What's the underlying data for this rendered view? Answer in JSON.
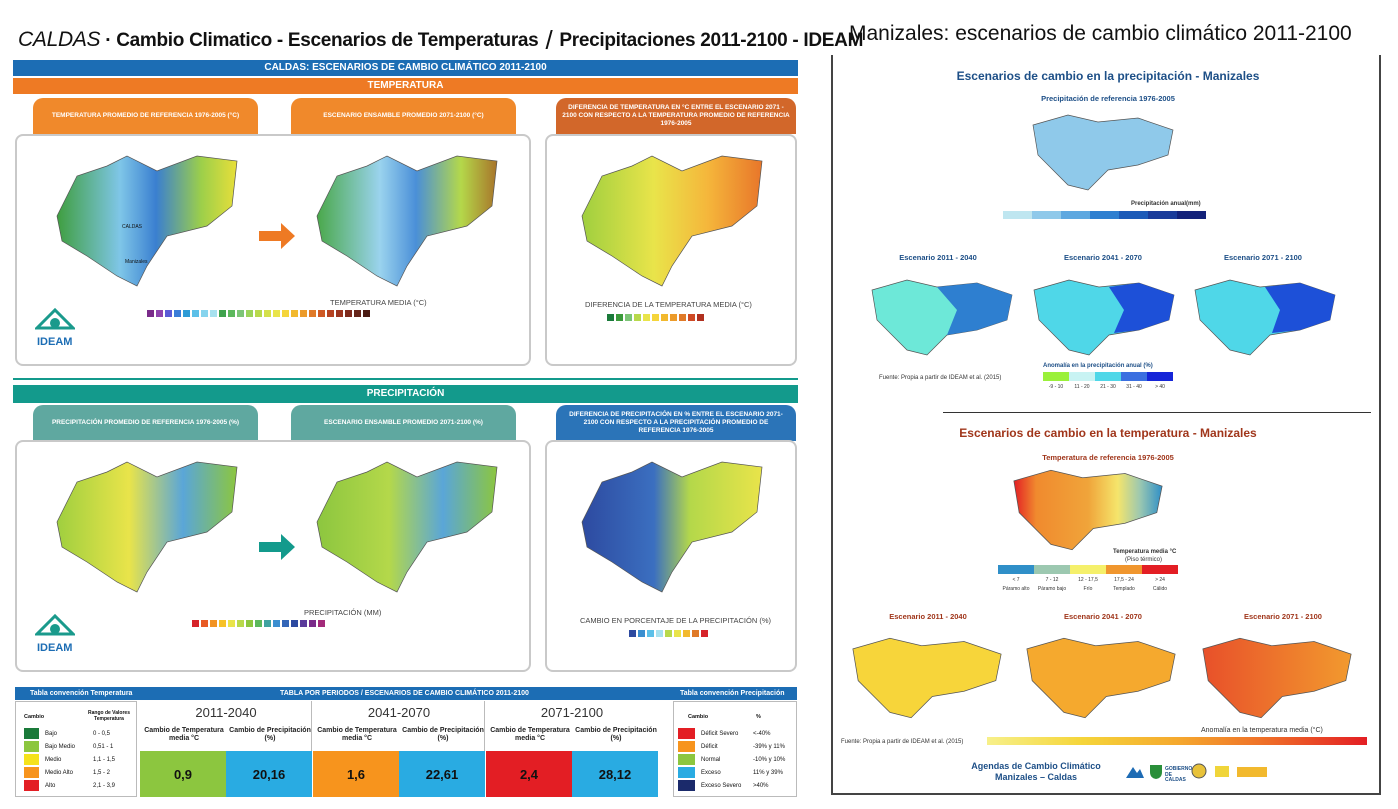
{
  "header": {
    "left_brand": "CALDAS",
    "left_rest_1": " · Cambio Climatico - Escenarios de Temperaturas",
    "left_sep": "/",
    "left_rest_2": "Precipitaciones 2011-2100 - IDEAM",
    "right_title": "Manizales: escenarios de cambio climático 2011-2100"
  },
  "poster": {
    "top_banner": "CALDAS:  ESCENARIOS DE CAMBIO CLIMÁTICO 2011-2100",
    "temp_banner": "TEMPERATURA",
    "temp_tab_1": "TEMPERATURA PROMEDIO DE REFERENCIA 1976-2005 (°C)",
    "temp_tab_2": "ESCENARIO ENSAMBLE PROMEDIO 2071-2100  (°C)",
    "temp_tab_3": "DIFERENCIA  DE TEMPERATURA EN  °C ENTRE EL ESCENARIO 2071 - 2100 CON RESPECTO A LA TEMPERATURA PROMEDIO DE REFERENCIA 1976-2005",
    "temp_legend": "TEMPERATURA MEDIA (°C)",
    "temp_diff_legend": "DIFERENCIA DE LA  TEMPERATURA MEDIA (°C)",
    "precip_banner": "PRECIPITACIÓN",
    "precip_tab_1": "PRECIPITACIÓN PROMEDIO DE REFERENCIA 1976-2005 (%)",
    "precip_tab_2": "ESCENARIO ENSAMBLE PROMEDIO 2071-2100 (%)",
    "precip_tab_3": "DIFERENCIA DE PRECIPITACIÓN EN % ENTRE EL ESCENARIO 2071-2100 CON RESPECTO A LA PRECIPITACIÓN PROMEDIO DE REFERENCIA 1976-2005",
    "precip_legend": "PRECIPITACIÓN (mm)",
    "precip_diff_legend": "CAMBIO EN PORCENTAJE DE LA PRECIPITACIÓN (%)",
    "ideam": "IDEAM",
    "map_label_caldas": "CALDAS",
    "map_label_manizales": "Manizales"
  },
  "table": {
    "left_head": "Tabla convención Temperatura",
    "center_head": "TABLA POR PERIODOS  /  ESCENARIOS DE CAMBIO CLIMÁTICO 2011-2100",
    "right_head": "Tabla convención Precipitación",
    "temp_conv_col1": "Cambio",
    "temp_conv_col2": "Rango de Valores Temperatura",
    "temp_conv": [
      {
        "label": "Bajo",
        "range": "0 - 0,5",
        "color": "#1a7a3a"
      },
      {
        "label": "Bajo Medio",
        "range": "0,51 - 1",
        "color": "#8cc63f"
      },
      {
        "label": "Medio",
        "range": "1,1 - 1,5",
        "color": "#f5e21b"
      },
      {
        "label": "Medio Alto",
        "range": "1,5 - 2",
        "color": "#f7941d"
      },
      {
        "label": "Alto",
        "range": "2,1 - 3,9",
        "color": "#e31e24"
      }
    ],
    "periods": [
      {
        "name": "2011-2040",
        "temp_hdr": "Cambio de Temperatura media °C",
        "prec_hdr": "Cambio de Precipitación (%)",
        "temp": "0,9",
        "prec": "20,16",
        "temp_color": "#8cc63f",
        "prec_color": "#29abe2"
      },
      {
        "name": "2041-2070",
        "temp_hdr": "Cambio de Temperatura media °C",
        "prec_hdr": "Cambio de Precipitación (%)",
        "temp": "1,6",
        "prec": "22,61",
        "temp_color": "#f7941d",
        "prec_color": "#29abe2"
      },
      {
        "name": "2071-2100",
        "temp_hdr": "Cambio de Temperatura media °C",
        "prec_hdr": "Cambio de Precipitación (%)",
        "temp": "2,4",
        "prec": "28,12",
        "temp_color": "#e31e24",
        "prec_color": "#29abe2"
      }
    ],
    "prec_conv_col1": "Cambio",
    "prec_conv_col2": "%",
    "prec_conv": [
      {
        "label": "Déficit Severo",
        "range": "<-40%",
        "color": "#e31e24"
      },
      {
        "label": "Déficit",
        "range": "-39% y 11%",
        "color": "#f7941d"
      },
      {
        "label": "Normal",
        "range": "-10% y 10%",
        "color": "#8cc63f"
      },
      {
        "label": "Exceso",
        "range": "11% y 39%",
        "color": "#29abe2"
      },
      {
        "label": "Exceso Severo",
        "range": ">40%",
        "color": "#1b2a6b"
      }
    ]
  },
  "right": {
    "precip_title": "Escenarios de cambio en la precipitación - Manizales",
    "precip_ref": "Precipitación de referencia 1976-2005",
    "precip_annual": "Precipitación anual(mm)",
    "scen_1": "Escenario 2011 - 2040",
    "scen_2": "Escenario 2041 - 2070",
    "scen_3": "Escenario 2071 - 2100",
    "source_1": "Fuente: Propia a partir de IDEAM et al. (2015)",
    "precip_anom": "Anomalía en la precipitación anual (%)",
    "precip_anom_ticks": [
      "-9 - 10",
      "11 - 20",
      "21 - 30",
      "31 - 40",
      "> 40"
    ],
    "temp_title": "Escenarios de cambio en la temperatura - Manizales",
    "temp_ref": "Temperatura de referencia 1976-2005",
    "temp_media": "Temperatura media °C",
    "piso": "(Piso térmico)",
    "temp_ticks": [
      "< 7",
      "7 - 12",
      "12 - 17,5",
      "17,5 - 24",
      "> 24"
    ],
    "temp_floor": [
      "Páramo alto",
      "Páramo bajo",
      "Frío",
      "Templado",
      "Cálido"
    ],
    "temp_anom": "Anomalía en la temperatura media (°C)",
    "source_2": "Fuente: Propia a partir de IDEAM et al. (2015)",
    "agenda_1": "Agendas de Cambio Climático",
    "agenda_2": "Manizales – Caldas",
    "gob": "GOBIERNO DE CALDAS"
  }
}
